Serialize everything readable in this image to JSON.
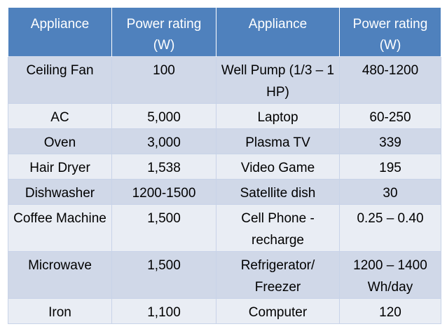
{
  "table": {
    "headers": [
      "Appliance",
      "Power rating (W)",
      "Appliance",
      "Power rating (W)"
    ],
    "rows": [
      [
        "Ceiling Fan",
        "100",
        "Well Pump (1/3 – 1 HP)",
        "480-1200"
      ],
      [
        "AC",
        "5,000",
        "Laptop",
        "60-250"
      ],
      [
        "Oven",
        "3,000",
        "Plasma TV",
        "339"
      ],
      [
        "Hair Dryer",
        "1,538",
        "Video Game",
        "195"
      ],
      [
        "Dishwasher",
        "1200-1500",
        "Satellite dish",
        "30"
      ],
      [
        "Coffee Machine",
        "1,500",
        "Cell Phone - recharge",
        "0.25 – 0.40"
      ],
      [
        "Microwave",
        "1,500",
        "Refrigerator/ Freezer",
        "1200 – 1400 Wh/day"
      ],
      [
        "Iron",
        "1,100",
        "Computer",
        "120"
      ]
    ]
  },
  "colors": {
    "header_bg": "#4f81bd",
    "header_text": "#ffffff",
    "row_odd_bg": "#d0d8e8",
    "row_even_bg": "#e9edf4"
  }
}
